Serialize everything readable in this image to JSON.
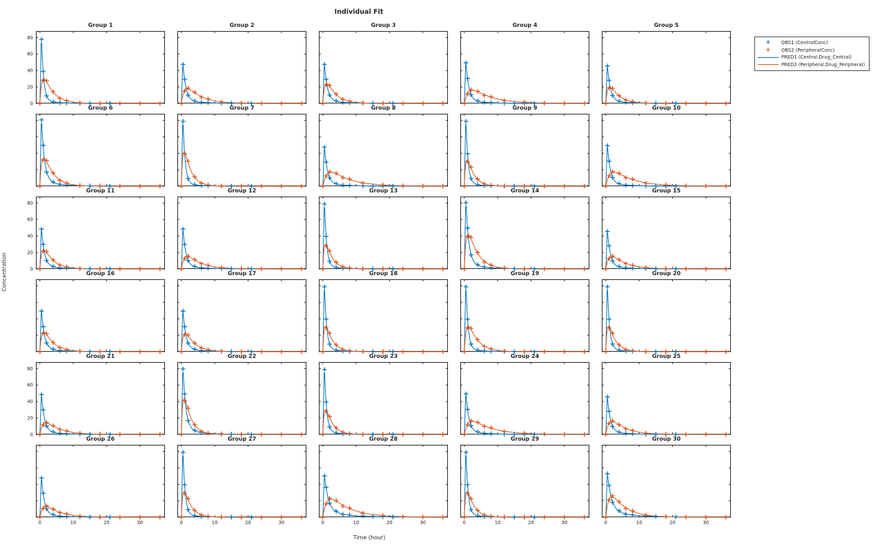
{
  "figure": {
    "title": "Individual Fit",
    "xlabel": "Time (hour)",
    "ylabel": "Concentration"
  },
  "legend": {
    "items": [
      {
        "label": "OBS1 (CentralConc)",
        "marker": "plus-marker",
        "color": "#0072BD"
      },
      {
        "label": "OBS2 (PeripheralConc)",
        "marker": "plus-marker",
        "color": "#D95319"
      },
      {
        "label": "PRED1 (Central.Drug_Central)",
        "marker": "line-marker",
        "color": "#0072BD"
      },
      {
        "label": "PRED2 (Peripheral.Drug_Peripheral)",
        "marker": "line-marker",
        "color": "#D95319"
      }
    ]
  },
  "chart_data": {
    "type": "line",
    "title": "Individual Fit",
    "xlabel": "Time (hour)",
    "ylabel": "Concentration",
    "xlim": [
      -1.2,
      37.5
    ],
    "ylim": [
      0,
      88
    ],
    "x_ticks": [
      0,
      10,
      20,
      30
    ],
    "y_ticks": [
      0,
      20,
      40,
      60,
      80
    ],
    "grid": false,
    "legend_position": "top-right-outside",
    "colors": {
      "central": "#0072BD",
      "peripheral": "#D95319"
    },
    "rise_time": 0.45,
    "obs_times_central": [
      0.5,
      1,
      2,
      4,
      6,
      8,
      12,
      15,
      18,
      21
    ],
    "obs_times_peripheral": [
      0,
      1,
      2,
      4,
      6,
      8,
      12,
      18,
      24,
      30,
      36
    ],
    "obs_jitter_central": [
      1,
      1.04,
      0.94,
      1.07,
      0.92,
      1.05,
      1.2,
      1.1,
      1.3,
      1.2
    ],
    "obs_jitter_peripheral": [
      0,
      0.95,
      1.05,
      1.04,
      0.92,
      1.06,
      0.9,
      1.05,
      1,
      1,
      1
    ],
    "central_decay_params": {
      "fast": {
        "a": 1.55,
        "w": 0.045,
        "b": 0.26
      },
      "medium": {
        "a": 1.15,
        "w": 0.085,
        "b": 0.21
      },
      "slow": {
        "a": 0.85,
        "w": 0.16,
        "b": 0.16
      }
    },
    "peripheral_decay_params": {
      "fast": {
        "a": 2.4,
        "b": 0.5
      },
      "medium": {
        "a": 1.7,
        "b": 0.36
      },
      "slow": {
        "a": 1.1,
        "b": 0.24
      },
      "xslow": {
        "a": 0.85,
        "b": 0.17
      }
    },
    "groups": [
      {
        "label": "Group 1",
        "central_peak": 84,
        "peripheral_peak": 30,
        "central_decay": "fast",
        "peripheral_decay": "medium"
      },
      {
        "label": "Group 2",
        "central_peak": 50,
        "peripheral_peak": 18,
        "central_decay": "medium",
        "peripheral_decay": "slow"
      },
      {
        "label": "Group 3",
        "central_peak": 50,
        "peripheral_peak": 24,
        "central_decay": "medium",
        "peripheral_decay": "medium"
      },
      {
        "label": "Group 4",
        "central_peak": 52,
        "peripheral_peak": 16,
        "central_decay": "medium",
        "peripheral_decay": "xslow"
      },
      {
        "label": "Group 5",
        "central_peak": 48,
        "peripheral_peak": 20,
        "central_decay": "medium",
        "peripheral_decay": "medium"
      },
      {
        "label": "Group 6",
        "central_peak": 85,
        "peripheral_peak": 34,
        "central_decay": "medium",
        "peripheral_decay": "medium"
      },
      {
        "label": "Group 7",
        "central_peak": 85,
        "peripheral_peak": 42,
        "central_decay": "fast",
        "peripheral_decay": "fast"
      },
      {
        "label": "Group 8",
        "central_peak": 50,
        "peripheral_peak": 17,
        "central_decay": "medium",
        "peripheral_decay": "xslow"
      },
      {
        "label": "Group 9",
        "central_peak": 85,
        "peripheral_peak": 32,
        "central_decay": "fast",
        "peripheral_decay": "fast"
      },
      {
        "label": "Group 10",
        "central_peak": 52,
        "peripheral_peak": 17,
        "central_decay": "medium",
        "peripheral_decay": "xslow"
      },
      {
        "label": "Group 11",
        "central_peak": 51,
        "peripheral_peak": 23,
        "central_decay": "medium",
        "peripheral_decay": "medium"
      },
      {
        "label": "Group 12",
        "central_peak": 51,
        "peripheral_peak": 15,
        "central_decay": "medium",
        "peripheral_decay": "slow"
      },
      {
        "label": "Group 13",
        "central_peak": 85,
        "peripheral_peak": 30,
        "central_decay": "fast",
        "peripheral_decay": "fast"
      },
      {
        "label": "Group 14",
        "central_peak": 85,
        "peripheral_peak": 42,
        "central_decay": "medium",
        "peripheral_decay": "medium"
      },
      {
        "label": "Group 15",
        "central_peak": 48,
        "peripheral_peak": 15,
        "central_decay": "medium",
        "peripheral_decay": "slow"
      },
      {
        "label": "Group 16",
        "central_peak": 52,
        "peripheral_peak": 24,
        "central_decay": "medium",
        "peripheral_decay": "medium"
      },
      {
        "label": "Group 17",
        "central_peak": 52,
        "peripheral_peak": 22,
        "central_decay": "medium",
        "peripheral_decay": "medium"
      },
      {
        "label": "Group 18",
        "central_peak": 85,
        "peripheral_peak": 31,
        "central_decay": "fast",
        "peripheral_decay": "fast"
      },
      {
        "label": "Group 19",
        "central_peak": 85,
        "peripheral_peak": 31,
        "central_decay": "fast",
        "peripheral_decay": "medium"
      },
      {
        "label": "Group 20",
        "central_peak": 85,
        "peripheral_peak": 31,
        "central_decay": "fast",
        "peripheral_decay": "fast"
      },
      {
        "label": "Group 21",
        "central_peak": 51,
        "peripheral_peak": 14,
        "central_decay": "medium",
        "peripheral_decay": "slow"
      },
      {
        "label": "Group 22",
        "central_peak": 84,
        "peripheral_peak": 44,
        "central_decay": "medium",
        "peripheral_decay": "fast"
      },
      {
        "label": "Group 23",
        "central_peak": 85,
        "peripheral_peak": 30,
        "central_decay": "fast",
        "peripheral_decay": "fast"
      },
      {
        "label": "Group 24",
        "central_peak": 52,
        "peripheral_peak": 16,
        "central_decay": "medium",
        "peripheral_decay": "xslow"
      },
      {
        "label": "Group 25",
        "central_peak": 48,
        "peripheral_peak": 16,
        "central_decay": "medium",
        "peripheral_decay": "slow"
      },
      {
        "label": "Group 26",
        "central_peak": 50,
        "peripheral_peak": 13,
        "central_decay": "medium",
        "peripheral_decay": "slow"
      },
      {
        "label": "Group 27",
        "central_peak": 85,
        "peripheral_peak": 31,
        "central_decay": "fast",
        "peripheral_decay": "fast"
      },
      {
        "label": "Group 28",
        "central_peak": 52,
        "peripheral_peak": 22,
        "central_decay": "slow",
        "peripheral_decay": "xslow"
      },
      {
        "label": "Group 29",
        "central_peak": 85,
        "peripheral_peak": 31,
        "central_decay": "fast",
        "peripheral_decay": "fast"
      },
      {
        "label": "Group 30",
        "central_peak": 55,
        "peripheral_peak": 25,
        "central_decay": "slow",
        "peripheral_decay": "slow"
      }
    ],
    "y_tick_label_rows": [
      0,
      2,
      4
    ],
    "x_tick_label_row": 5
  }
}
